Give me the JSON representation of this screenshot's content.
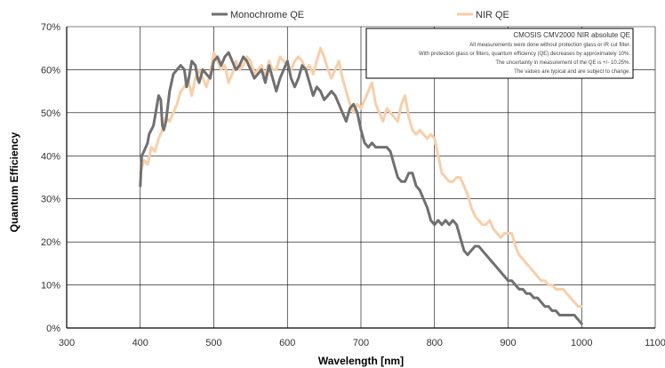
{
  "chart_data": {
    "type": "line",
    "xlabel": "Wavelength [nm]",
    "ylabel": "Quantum Efficiency",
    "xlim": [
      300,
      1100
    ],
    "ylim": [
      0,
      70
    ],
    "xticks": [
      "300",
      "400",
      "500",
      "600",
      "700",
      "800",
      "900",
      "1000",
      "1100"
    ],
    "yticks": [
      "0%",
      "10%",
      "20%",
      "30%",
      "40%",
      "50%",
      "60%",
      "70%"
    ],
    "grid": true,
    "legend": "top",
    "annotation": {
      "title": "CMOSIS CMV2000 NIR absolute QE",
      "lines": [
        "All measurements were done without protection glass or IR cut filter.",
        "With protection glass or filters, quantum efficiency (QE) decreases by approximately 10%.",
        "The uncertainty in measurement of the QE is +/- 10.25%.",
        "The values are typical and are subject to change."
      ]
    },
    "series": [
      {
        "name": "Monochrome QE",
        "color": "#707070",
        "x": [
          400,
          402,
          405,
          410,
          412,
          418,
          420,
          425,
          428,
          430,
          432,
          435,
          440,
          445,
          450,
          455,
          460,
          463,
          466,
          470,
          475,
          478,
          480,
          485,
          490,
          495,
          500,
          505,
          510,
          515,
          520,
          525,
          530,
          535,
          540,
          545,
          550,
          555,
          560,
          565,
          570,
          575,
          580,
          585,
          590,
          595,
          600,
          605,
          610,
          615,
          620,
          625,
          630,
          635,
          640,
          645,
          650,
          655,
          660,
          665,
          670,
          675,
          680,
          685,
          690,
          695,
          700,
          705,
          710,
          715,
          720,
          725,
          730,
          735,
          740,
          745,
          750,
          755,
          760,
          765,
          770,
          775,
          780,
          785,
          790,
          795,
          800,
          805,
          810,
          815,
          820,
          825,
          830,
          835,
          840,
          845,
          850,
          855,
          860,
          865,
          870,
          875,
          880,
          885,
          890,
          895,
          900,
          905,
          910,
          915,
          920,
          925,
          930,
          935,
          940,
          945,
          950,
          955,
          960,
          965,
          970,
          975,
          980,
          985,
          990,
          995,
          1000
        ],
        "y": [
          33,
          40,
          41,
          43,
          45,
          47,
          49,
          54,
          53,
          47,
          46,
          48,
          55,
          59,
          60,
          61,
          60,
          56,
          58,
          62,
          61,
          58,
          57,
          60,
          59,
          58,
          62,
          63,
          61,
          63,
          64,
          62,
          60,
          61,
          63,
          62,
          60,
          58,
          59,
          60,
          57,
          61,
          58,
          55,
          58,
          60,
          62,
          58,
          56,
          58,
          61,
          60,
          57,
          54,
          56,
          55,
          53,
          54,
          55,
          54,
          52,
          50,
          48,
          51,
          52,
          50,
          46,
          43,
          42,
          43,
          42,
          42,
          42,
          42,
          41,
          38,
          35,
          34,
          34,
          36,
          36,
          33,
          32,
          30,
          28,
          25,
          24,
          25,
          24,
          25,
          24,
          25,
          24,
          21,
          18,
          17,
          18,
          19,
          19,
          18,
          17,
          16,
          15,
          14,
          13,
          12,
          11,
          11,
          10,
          9,
          9,
          8,
          8,
          7,
          7,
          6,
          5,
          5,
          4,
          4,
          3,
          3,
          3,
          3,
          3,
          2,
          1
        ]
      },
      {
        "name": "NIR QE",
        "color": "#f7cfaa",
        "x": [
          400,
          405,
          410,
          415,
          420,
          425,
          430,
          435,
          440,
          445,
          450,
          455,
          460,
          465,
          470,
          475,
          480,
          485,
          490,
          495,
          500,
          505,
          510,
          515,
          520,
          525,
          530,
          535,
          540,
          545,
          550,
          555,
          560,
          565,
          570,
          575,
          580,
          585,
          590,
          595,
          600,
          605,
          610,
          615,
          620,
          625,
          630,
          635,
          640,
          645,
          650,
          655,
          660,
          665,
          670,
          675,
          680,
          685,
          690,
          695,
          700,
          705,
          710,
          715,
          720,
          725,
          730,
          735,
          740,
          745,
          750,
          755,
          760,
          765,
          770,
          775,
          780,
          785,
          790,
          795,
          800,
          805,
          810,
          815,
          820,
          825,
          830,
          835,
          840,
          845,
          850,
          855,
          860,
          865,
          870,
          875,
          880,
          885,
          890,
          895,
          900,
          905,
          910,
          915,
          920,
          925,
          930,
          935,
          940,
          945,
          950,
          955,
          960,
          965,
          970,
          975,
          980,
          985,
          990,
          995,
          1000
        ],
        "y": [
          36,
          39,
          38,
          42,
          41,
          44,
          46,
          49,
          48,
          50,
          52,
          55,
          56,
          58,
          54,
          58,
          60,
          58,
          56,
          59,
          64,
          62,
          60,
          61,
          57,
          59,
          62,
          60,
          61,
          63,
          62,
          59,
          60,
          61,
          58,
          62,
          60,
          60,
          63,
          62,
          61,
          60,
          62,
          63,
          62,
          60,
          61,
          59,
          62,
          65,
          63,
          60,
          58,
          60,
          62,
          58,
          55,
          52,
          50,
          52,
          51,
          53,
          55,
          57,
          52,
          50,
          48,
          51,
          50,
          49,
          48,
          52,
          54,
          49,
          46,
          45,
          46,
          45,
          44,
          45,
          44,
          40,
          36,
          35,
          34,
          34,
          35,
          35,
          33,
          31,
          28,
          26,
          25,
          24,
          24,
          25,
          23,
          22,
          21,
          22,
          22,
          22,
          19,
          17,
          16,
          15,
          14,
          13,
          12,
          11,
          11,
          10,
          10,
          9,
          9,
          9,
          8,
          7,
          6,
          5,
          5
        ]
      }
    ]
  }
}
